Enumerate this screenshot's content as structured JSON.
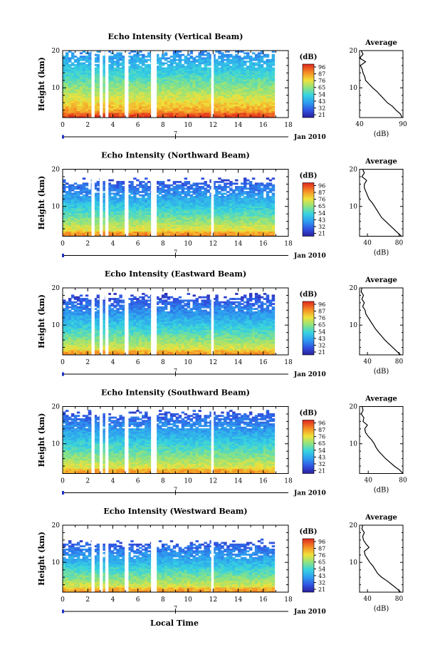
{
  "figure": {
    "xlabel": "Local Time",
    "date_label": "Jan 2010",
    "date_tick_label": "7"
  },
  "chart_data": [
    {
      "type": "heatmap",
      "title": "Echo Intensity (Vertical Beam)",
      "xlabel": "",
      "ylabel": "Height (km)",
      "xlim": [
        0,
        18
      ],
      "ylim": [
        2,
        20
      ],
      "x_ticks": [
        "0",
        "2",
        "4",
        "6",
        "8",
        "10",
        "12",
        "14",
        "16",
        "18"
      ],
      "y_ticks": [
        "10",
        "20"
      ],
      "colorbar": {
        "label": "(dB)",
        "ticks": [
          "96",
          "87",
          "76",
          "65",
          "54",
          "43",
          "32",
          "21"
        ],
        "range": [
          21,
          96
        ]
      },
      "data_gaps_hours": [
        [
          2.3,
          2.55
        ],
        [
          2.95,
          3.2
        ],
        [
          3.4,
          3.65
        ],
        [
          4.95,
          5.25
        ],
        [
          7.05,
          7.5
        ],
        [
          11.85,
          12.05
        ]
      ],
      "data_end_hour": 16.9,
      "top_height_km": 19.5,
      "surface_db": 90,
      "upper_db": 40,
      "average_profile": {
        "title": "Average",
        "xlabel": "(dB)",
        "xlim": [
          40,
          90
        ],
        "x_ticks": [
          "40",
          "90"
        ],
        "y_ticks": [
          "10",
          "20"
        ],
        "height_km": [
          2,
          3,
          4,
          5,
          6,
          7,
          8,
          9,
          10,
          11,
          12,
          13,
          14,
          15,
          16,
          17,
          18,
          19,
          20
        ],
        "db": [
          89,
          87,
          82,
          78,
          72,
          68,
          64,
          60,
          55,
          51,
          47,
          46,
          44,
          43,
          41,
          47,
          40,
          44,
          42
        ]
      }
    },
    {
      "type": "heatmap",
      "title": "Echo Intensity (Northward Beam)",
      "xlabel": "",
      "ylabel": "Height (km)",
      "xlim": [
        0,
        18
      ],
      "ylim": [
        2,
        20
      ],
      "x_ticks": [
        "0",
        "2",
        "4",
        "6",
        "8",
        "10",
        "12",
        "14",
        "16",
        "18"
      ],
      "y_ticks": [
        "10",
        "20"
      ],
      "colorbar": {
        "label": "(dB)",
        "ticks": [
          "96",
          "87",
          "76",
          "65",
          "54",
          "43",
          "32",
          "21"
        ],
        "range": [
          21,
          96
        ]
      },
      "data_gaps_hours": [
        [
          2.3,
          2.55
        ],
        [
          2.95,
          3.2
        ],
        [
          3.4,
          3.65
        ],
        [
          4.95,
          5.25
        ],
        [
          7.05,
          7.5
        ],
        [
          11.85,
          12.05
        ]
      ],
      "data_end_hour": 16.9,
      "top_height_km": 16.5,
      "surface_db": 82,
      "upper_db": 32,
      "average_profile": {
        "title": "Average",
        "xlabel": "(dB)",
        "xlim": [
          30,
          85
        ],
        "x_ticks": [
          "40",
          "80"
        ],
        "y_ticks": [
          "10",
          "20"
        ],
        "height_km": [
          2,
          3,
          4,
          5,
          6,
          7,
          8,
          9,
          10,
          11,
          12,
          13,
          14,
          15,
          16,
          17,
          18,
          19,
          20
        ],
        "db": [
          83,
          78,
          73,
          68,
          63,
          58,
          55,
          52,
          49,
          46,
          42,
          40,
          38,
          36,
          36,
          39,
          33,
          36,
          34
        ]
      }
    },
    {
      "type": "heatmap",
      "title": "Echo Intensity (Eastward Beam)",
      "xlabel": "",
      "ylabel": "Height (km)",
      "xlim": [
        0,
        18
      ],
      "ylim": [
        2,
        20
      ],
      "x_ticks": [
        "0",
        "2",
        "4",
        "6",
        "8",
        "10",
        "12",
        "14",
        "16",
        "18"
      ],
      "y_ticks": [
        "10",
        "20"
      ],
      "colorbar": {
        "label": "(dB)",
        "ticks": [
          "96",
          "87",
          "76",
          "65",
          "54",
          "43",
          "32",
          "21"
        ],
        "range": [
          21,
          96
        ]
      },
      "data_gaps_hours": [
        [
          2.3,
          2.55
        ],
        [
          2.95,
          3.2
        ],
        [
          3.4,
          3.65
        ],
        [
          4.95,
          5.25
        ],
        [
          7.05,
          7.5
        ],
        [
          11.85,
          12.05
        ]
      ],
      "data_end_hour": 16.9,
      "top_height_km": 17.5,
      "surface_db": 80,
      "upper_db": 30,
      "average_profile": {
        "title": "Average",
        "xlabel": "(dB)",
        "xlim": [
          30,
          85
        ],
        "x_ticks": [
          "40",
          "80"
        ],
        "y_ticks": [
          "10",
          "20"
        ],
        "height_km": [
          2,
          3,
          4,
          5,
          6,
          7,
          8,
          9,
          10,
          11,
          12,
          13,
          14,
          15,
          16,
          17,
          18,
          19,
          20
        ],
        "db": [
          82,
          77,
          72,
          67,
          62,
          58,
          54,
          50,
          47,
          44,
          41,
          38,
          37,
          34,
          36,
          33,
          35,
          32,
          33
        ]
      }
    },
    {
      "type": "heatmap",
      "title": "Echo Intensity (Southward Beam)",
      "xlabel": "",
      "ylabel": "Height (km)",
      "xlim": [
        0,
        18
      ],
      "ylim": [
        2,
        20
      ],
      "x_ticks": [
        "0",
        "2",
        "4",
        "6",
        "8",
        "10",
        "12",
        "14",
        "16",
        "18"
      ],
      "y_ticks": [
        "10",
        "20"
      ],
      "colorbar": {
        "label": "(dB)",
        "ticks": [
          "96",
          "87",
          "76",
          "65",
          "54",
          "43",
          "32",
          "21"
        ],
        "range": [
          21,
          96
        ]
      },
      "data_gaps_hours": [
        [
          2.3,
          2.55
        ],
        [
          2.95,
          3.2
        ],
        [
          3.4,
          3.65
        ],
        [
          4.95,
          5.25
        ],
        [
          7.05,
          7.5
        ],
        [
          11.85,
          12.05
        ]
      ],
      "data_end_hour": 16.9,
      "top_height_km": 18,
      "surface_db": 80,
      "upper_db": 32,
      "average_profile": {
        "title": "Average",
        "xlabel": "(dB)",
        "xlim": [
          30,
          80
        ],
        "x_ticks": [
          "40",
          "80"
        ],
        "y_ticks": [
          "10",
          "20"
        ],
        "height_km": [
          2,
          3,
          4,
          5,
          6,
          7,
          8,
          9,
          10,
          11,
          12,
          13,
          14,
          15,
          16,
          17,
          18,
          19,
          20
        ],
        "db": [
          80,
          76,
          70,
          65,
          60,
          56,
          52,
          49,
          47,
          44,
          40,
          37,
          36,
          39,
          34,
          35,
          32,
          34,
          33
        ]
      }
    },
    {
      "type": "heatmap",
      "title": "Echo Intensity (Westward Beam)",
      "xlabel": "Local Time",
      "ylabel": "Height (km)",
      "xlim": [
        0,
        18
      ],
      "ylim": [
        2,
        20
      ],
      "x_ticks": [
        "0",
        "2",
        "4",
        "6",
        "8",
        "10",
        "12",
        "14",
        "16",
        "18"
      ],
      "y_ticks": [
        "10",
        "20"
      ],
      "colorbar": {
        "label": "(dB)",
        "ticks": [
          "96",
          "87",
          "76",
          "65",
          "54",
          "43",
          "32",
          "21"
        ],
        "range": [
          21,
          96
        ]
      },
      "data_gaps_hours": [
        [
          2.3,
          2.55
        ],
        [
          2.95,
          3.2
        ],
        [
          3.4,
          3.65
        ],
        [
          4.95,
          5.25
        ],
        [
          7.05,
          7.5
        ],
        [
          11.85,
          12.05
        ]
      ],
      "data_end_hour": 16.9,
      "top_height_km": 15,
      "surface_db": 80,
      "upper_db": 32,
      "average_profile": {
        "title": "Average",
        "xlabel": "(dB)",
        "xlim": [
          30,
          85
        ],
        "x_ticks": [
          "40",
          "80"
        ],
        "y_ticks": [
          "10",
          "20"
        ],
        "height_km": [
          2,
          3,
          4,
          5,
          6,
          7,
          8,
          9,
          10,
          11,
          12,
          13,
          14,
          15,
          16,
          17,
          18,
          19,
          20
        ],
        "db": [
          82,
          77,
          71,
          65,
          58,
          53,
          50,
          47,
          43,
          40,
          37,
          36,
          42,
          38,
          35,
          34,
          36,
          33,
          34
        ]
      }
    }
  ]
}
